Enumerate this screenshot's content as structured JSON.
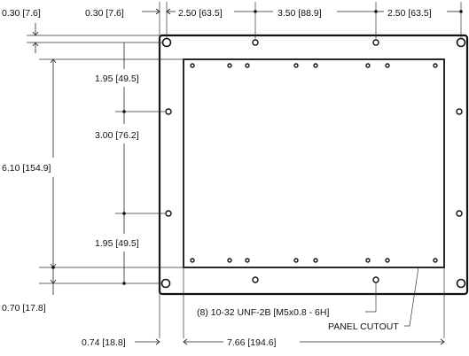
{
  "dimensions": {
    "top_offset_vertical": "0.30 [7.6]",
    "top_offset_horizontal": "0.30 [7.6]",
    "top_spacing_left": "2.50 [63.5]",
    "top_spacing_center": "3.50 [88.9]",
    "top_spacing_right": "2.50 [63.5]",
    "left_upper_spacing": "1.95 [49.5]",
    "left_center_spacing": "3.00 [76.2]",
    "left_lower_spacing": "1.95 [49.5]",
    "overall_height": "6.10 [154.9]",
    "bottom_offset": "0.70 [17.8]",
    "bottom_left_offset": "0.74 [18.8]",
    "cutout_width": "7.66 [194.6]"
  },
  "callouts": {
    "hole_spec": "(8) 10-32 UNF-2B [M5x0.8 - 6H]",
    "panel_cutout": "PANEL CUTOUT"
  }
}
